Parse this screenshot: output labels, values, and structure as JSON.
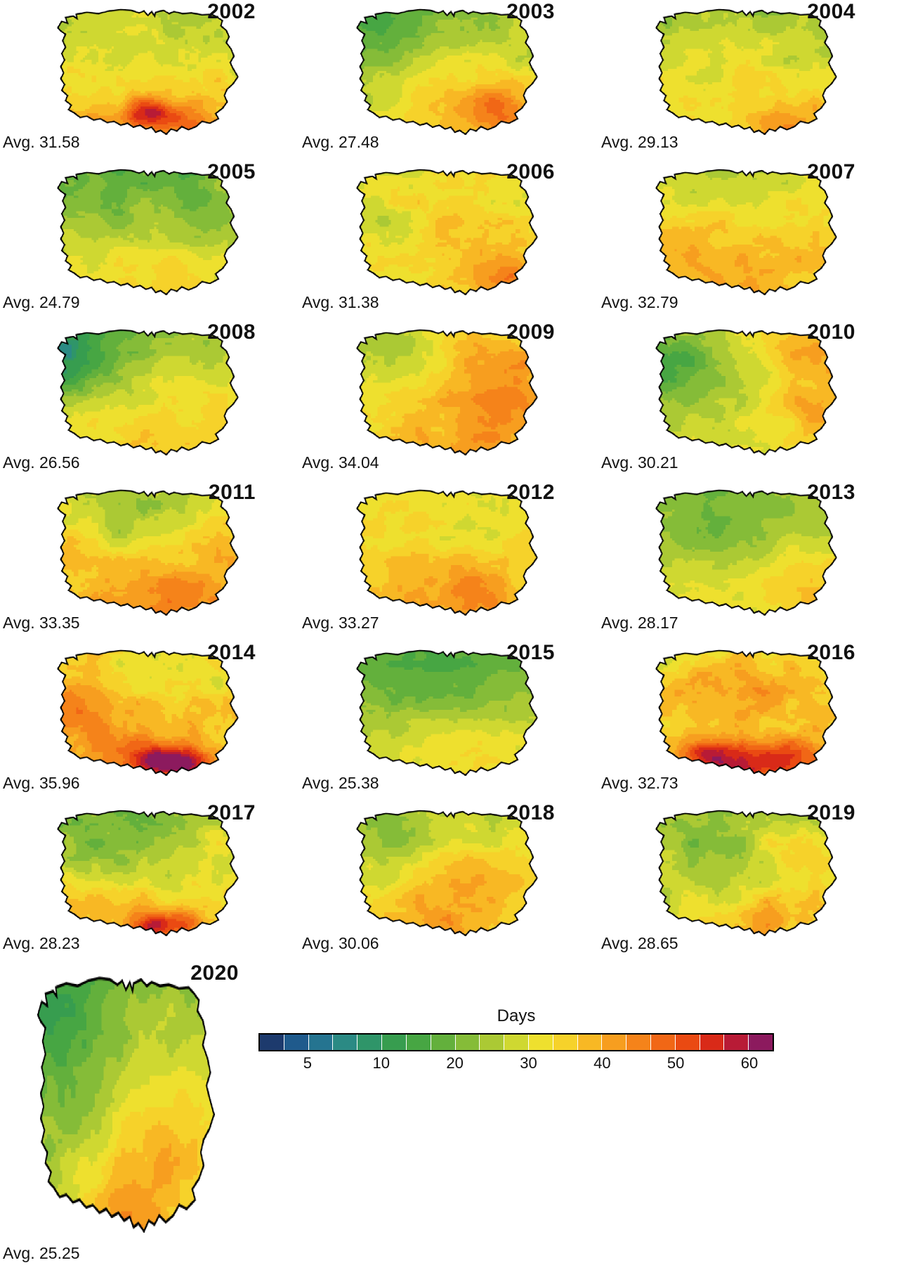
{
  "legend": {
    "title": "Days",
    "ticks": [
      "5",
      "10",
      "20",
      "30",
      "40",
      "50",
      "60"
    ],
    "tick_positions_pct": [
      9.52,
      23.81,
      38.1,
      52.38,
      66.67,
      80.95,
      95.24
    ],
    "class_bounds": [
      0,
      3.3,
      5,
      6.7,
      8.3,
      10,
      13.3,
      16.7,
      20,
      23.3,
      26.7,
      30,
      33.3,
      36.7,
      40,
      43.3,
      46.7,
      50,
      53.3,
      56.7,
      60,
      999
    ],
    "colors": [
      "#1d3a6d",
      "#1f5a8c",
      "#257490",
      "#2b8a84",
      "#2f9569",
      "#379d4f",
      "#47a643",
      "#63b03c",
      "#85bc38",
      "#abc934",
      "#cfd831",
      "#eee02e",
      "#f6d22a",
      "#f8b824",
      "#f79e1f",
      "#f5831a",
      "#f16716",
      "#ea4a12",
      "#d92a18",
      "#b81b36",
      "#8c1a5e"
    ]
  },
  "panels": [
    {
      "year": "2002",
      "avg_label": "Avg. 31.58",
      "avg": 31.58,
      "pattern": {
        "ns": 16,
        "ew": 0,
        "noise": 6,
        "spots": [
          [
            0.52,
            0.8,
            0.09,
            20
          ],
          [
            0.3,
            0.12,
            0.18,
            4
          ],
          [
            0.75,
            0.88,
            0.1,
            8
          ],
          [
            0.12,
            0.22,
            0.15,
            -4
          ]
        ]
      }
    },
    {
      "year": "2003",
      "avg_label": "Avg. 27.48",
      "avg": 27.48,
      "pattern": {
        "ns": 12,
        "ew": 3,
        "noise": 5,
        "spots": [
          [
            0.12,
            0.25,
            0.18,
            -6
          ],
          [
            0.8,
            0.8,
            0.15,
            12
          ],
          [
            0.6,
            0.7,
            0.2,
            5
          ]
        ]
      }
    },
    {
      "year": "2004",
      "avg_label": "Avg. 29.13",
      "avg": 29.13,
      "pattern": {
        "ns": 11,
        "ew": 2,
        "noise": 5,
        "spots": [
          [
            0.75,
            0.88,
            0.12,
            10
          ],
          [
            0.95,
            0.3,
            0.1,
            -4
          ],
          [
            0.4,
            0.55,
            0.2,
            3
          ]
        ]
      }
    },
    {
      "year": "2005",
      "avg_label": "Avg. 24.79",
      "avg": 24.79,
      "pattern": {
        "ns": 10,
        "ew": 0,
        "noise": 5,
        "spots": [
          [
            0.5,
            0.15,
            0.3,
            -3
          ],
          [
            0.55,
            0.85,
            0.25,
            6
          ]
        ]
      }
    },
    {
      "year": "2006",
      "avg_label": "Avg. 31.38",
      "avg": 31.38,
      "pattern": {
        "ns": 6,
        "ew": 2,
        "noise": 6,
        "spots": [
          [
            0.78,
            0.8,
            0.12,
            12
          ],
          [
            0.55,
            0.5,
            0.2,
            5
          ],
          [
            0.35,
            0.12,
            0.25,
            3
          ],
          [
            0.15,
            0.45,
            0.2,
            -4
          ]
        ]
      }
    },
    {
      "year": "2007",
      "avg_label": "Avg. 32.79",
      "avg": 32.79,
      "pattern": {
        "ns": 5,
        "ew": 0,
        "noise": 5,
        "spots": [
          [
            0.5,
            0.06,
            0.22,
            -6
          ],
          [
            0.65,
            0.75,
            0.3,
            4
          ],
          [
            0.2,
            0.65,
            0.2,
            3
          ]
        ]
      }
    },
    {
      "year": "2008",
      "avg_label": "Avg. 26.56",
      "avg": 26.56,
      "pattern": {
        "ns": 11,
        "ew": 3,
        "noise": 5,
        "spots": [
          [
            0.07,
            0.28,
            0.16,
            -12
          ],
          [
            0.18,
            0.12,
            0.2,
            -6
          ],
          [
            0.55,
            0.82,
            0.3,
            5
          ],
          [
            0.9,
            0.55,
            0.2,
            3
          ]
        ]
      }
    },
    {
      "year": "2009",
      "avg_label": "Avg. 34.04",
      "avg": 34.04,
      "pattern": {
        "ns": 4,
        "ew": 5,
        "noise": 5,
        "spots": [
          [
            0.72,
            0.28,
            0.2,
            7
          ],
          [
            0.82,
            0.62,
            0.18,
            7
          ],
          [
            0.25,
            0.18,
            0.2,
            -6
          ],
          [
            0.5,
            0.9,
            0.2,
            4
          ]
        ]
      }
    },
    {
      "year": "2010",
      "avg_label": "Avg. 30.21",
      "avg": 30.21,
      "pattern": {
        "ns": 2,
        "ew": 9,
        "noise": 5,
        "spots": [
          [
            0.07,
            0.3,
            0.18,
            -12
          ],
          [
            0.85,
            0.22,
            0.15,
            9
          ],
          [
            0.88,
            0.6,
            0.14,
            8
          ],
          [
            0.45,
            0.5,
            0.25,
            -3
          ]
        ]
      }
    },
    {
      "year": "2011",
      "avg_label": "Avg. 33.35",
      "avg": 33.35,
      "pattern": {
        "ns": 8,
        "ew": 0,
        "noise": 6,
        "spots": [
          [
            0.45,
            0.28,
            0.22,
            -7
          ],
          [
            0.15,
            0.45,
            0.15,
            5
          ],
          [
            0.6,
            0.88,
            0.25,
            8
          ],
          [
            0.85,
            0.45,
            0.15,
            5
          ]
        ]
      }
    },
    {
      "year": "2012",
      "avg_label": "Avg. 33.27",
      "avg": 33.27,
      "pattern": {
        "ns": 6,
        "ew": 1,
        "noise": 5,
        "spots": [
          [
            0.45,
            0.75,
            0.2,
            6
          ],
          [
            0.72,
            0.82,
            0.15,
            6
          ],
          [
            0.3,
            0.3,
            0.2,
            2
          ],
          [
            0.6,
            0.4,
            0.2,
            -3
          ]
        ]
      }
    },
    {
      "year": "2013",
      "avg_label": "Avg. 28.17",
      "avg": 28.17,
      "pattern": {
        "ns": 5,
        "ew": 3,
        "noise": 4,
        "spots": [
          [
            0.45,
            0.35,
            0.3,
            -7
          ],
          [
            0.8,
            0.75,
            0.2,
            8
          ],
          [
            0.25,
            0.8,
            0.15,
            4
          ]
        ]
      }
    },
    {
      "year": "2014",
      "avg_label": "Avg. 35.96",
      "avg": 35.96,
      "pattern": {
        "ns": 9,
        "ew": -2,
        "noise": 6,
        "spots": [
          [
            0.55,
            0.86,
            0.09,
            19
          ],
          [
            0.7,
            0.88,
            0.08,
            21
          ],
          [
            0.12,
            0.35,
            0.15,
            7
          ],
          [
            0.3,
            0.6,
            0.2,
            5
          ],
          [
            0.55,
            0.2,
            0.2,
            -3
          ]
        ]
      }
    },
    {
      "year": "2015",
      "avg_label": "Avg. 25.38",
      "avg": 25.38,
      "pattern": {
        "ns": 9,
        "ew": 0,
        "noise": 4,
        "spots": [
          [
            0.55,
            0.12,
            0.25,
            -5
          ],
          [
            0.3,
            0.35,
            0.2,
            -3
          ],
          [
            0.6,
            0.8,
            0.25,
            5
          ]
        ]
      }
    },
    {
      "year": "2016",
      "avg_label": "Avg. 32.73",
      "avg": 32.73,
      "pattern": {
        "ns": 9,
        "ew": 2,
        "noise": 7,
        "spots": [
          [
            0.48,
            0.88,
            0.1,
            20
          ],
          [
            0.73,
            0.86,
            0.1,
            19
          ],
          [
            0.3,
            0.82,
            0.09,
            14
          ],
          [
            0.3,
            0.25,
            0.2,
            7
          ],
          [
            0.65,
            0.35,
            0.22,
            7
          ],
          [
            0.1,
            0.15,
            0.1,
            -4
          ]
        ]
      }
    },
    {
      "year": "2017",
      "avg_label": "Avg. 28.23",
      "avg": 28.23,
      "pattern": {
        "ns": 12,
        "ew": 0,
        "noise": 6,
        "spots": [
          [
            0.35,
            0.25,
            0.22,
            -6
          ],
          [
            0.55,
            0.9,
            0.08,
            22
          ],
          [
            0.72,
            0.87,
            0.07,
            16
          ],
          [
            0.25,
            0.75,
            0.2,
            7
          ],
          [
            0.8,
            0.3,
            0.15,
            4
          ]
        ]
      }
    },
    {
      "year": "2018",
      "avg_label": "Avg. 30.06",
      "avg": 30.06,
      "pattern": {
        "ns": 8,
        "ew": 1,
        "noise": 5,
        "spots": [
          [
            0.2,
            0.25,
            0.2,
            -5
          ],
          [
            0.5,
            0.8,
            0.22,
            8
          ],
          [
            0.75,
            0.5,
            0.18,
            4
          ],
          [
            0.55,
            0.45,
            0.15,
            4
          ]
        ]
      }
    },
    {
      "year": "2019",
      "avg_label": "Avg. 28.65",
      "avg": 28.65,
      "pattern": {
        "ns": 6,
        "ew": 2,
        "noise": 6,
        "spots": [
          [
            0.4,
            0.45,
            0.22,
            -7
          ],
          [
            0.75,
            0.33,
            0.13,
            8
          ],
          [
            0.6,
            0.85,
            0.18,
            9
          ],
          [
            0.25,
            0.6,
            0.15,
            3
          ],
          [
            0.85,
            0.75,
            0.12,
            6
          ]
        ]
      }
    },
    {
      "year": "2020",
      "avg_label": "Avg. 25.25",
      "avg": 25.25,
      "pattern": {
        "ns": 9,
        "ew": 5,
        "noise": 5,
        "spots": [
          [
            0.22,
            0.25,
            0.25,
            -7
          ],
          [
            0.68,
            0.72,
            0.22,
            9
          ],
          [
            0.5,
            0.93,
            0.15,
            10
          ],
          [
            0.55,
            0.35,
            0.2,
            4
          ]
        ]
      }
    }
  ]
}
